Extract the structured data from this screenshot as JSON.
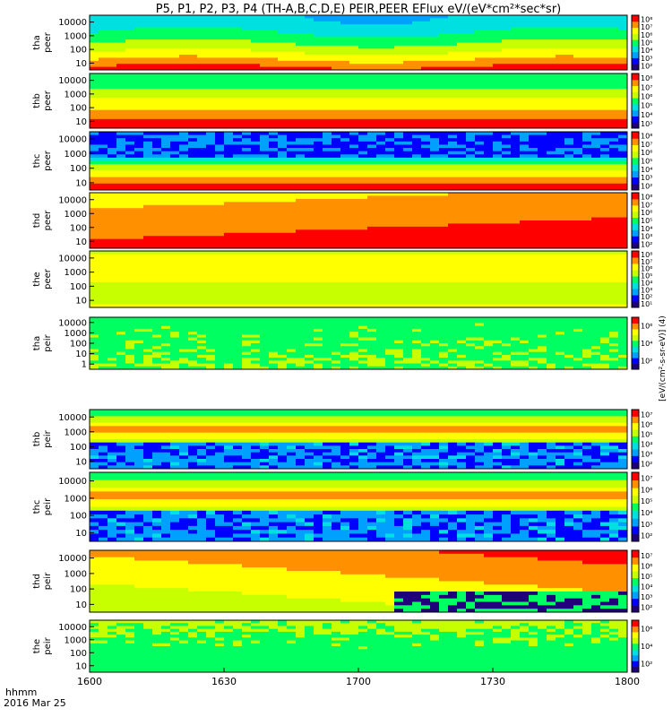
{
  "title": "P5, P1, P2, P3, P4 (TH-A,B,C,D,E) PEIR,PEER EFlux eV/(eV*cm²*sec*sr)",
  "footer": {
    "time_label": "hhmm",
    "date_label": "2016 Mar 25"
  },
  "colors": {
    "spectrogram_scale": [
      "#20007a",
      "#0000ff",
      "#00a0ff",
      "#00e0e0",
      "#00ff60",
      "#c8ff00",
      "#ffff00",
      "#ff9000",
      "#ff0000"
    ],
    "frame": "#000000"
  },
  "chart_data": {
    "type": "heatmap",
    "x": {
      "ticks": [
        "1600",
        "1630",
        "1700",
        "1730",
        "1800"
      ],
      "range": [
        "16:00",
        "18:00"
      ]
    },
    "colorbar_label": "[eV/(cm²-s-sr-eV)] (4)",
    "panels": [
      {
        "id": "tha-peer",
        "label1": "tha",
        "label2": "peer",
        "yticks": [
          "10",
          "100",
          "1000",
          "10000"
        ],
        "cbar_ticks": [
          "10²",
          "10³",
          "10⁴",
          "10⁵",
          "10⁶",
          "10⁷",
          "10⁸"
        ],
        "profile": "peer_low"
      },
      {
        "id": "thb-peer",
        "label1": "thb",
        "label2": "peer",
        "yticks": [
          "10",
          "100",
          "1000",
          "10000"
        ],
        "cbar_ticks": [
          "10³",
          "10⁴",
          "10⁵",
          "10⁶",
          "10⁷",
          "10⁸"
        ],
        "profile": "peer_mid"
      },
      {
        "id": "thc-peer",
        "label1": "thc",
        "label2": "peer",
        "yticks": [
          "10",
          "100",
          "1000",
          "10000"
        ],
        "cbar_ticks": [
          "10²",
          "10³",
          "10⁴",
          "10⁵",
          "10⁶",
          "10⁷",
          "10⁸"
        ],
        "profile": "peer_noisy"
      },
      {
        "id": "thd-peer",
        "label1": "thd",
        "label2": "peer",
        "yticks": [
          "10",
          "100",
          "1000",
          "10000"
        ],
        "cbar_ticks": [
          "10²",
          "10³",
          "10⁴",
          "10⁵",
          "10⁶",
          "10⁷",
          "10⁸"
        ],
        "profile": "peer_hot"
      },
      {
        "id": "the-peer",
        "label1": "the",
        "label2": "peer",
        "yticks": [
          "10",
          "100",
          "1000",
          "10000"
        ],
        "cbar_ticks": [
          "10¹",
          "10²",
          "10³",
          "10⁴",
          "10⁵",
          "10⁶",
          "10⁷",
          "10⁸"
        ],
        "profile": "peer_warm"
      },
      {
        "id": "tha-peir",
        "label1": "tha",
        "label2": "peir",
        "yticks": [
          "1",
          "10",
          "100",
          "1000",
          "10000"
        ],
        "cbar_ticks": [
          "10²",
          "10⁴",
          "10⁶"
        ],
        "profile": "peir_flat"
      },
      {
        "id": "thb-peir",
        "label1": "thb",
        "label2": "peir",
        "yticks": [
          "10",
          "100",
          "1000",
          "10000"
        ],
        "cbar_ticks": [
          "10²",
          "10³",
          "10⁴",
          "10⁵",
          "10⁶",
          "10⁷"
        ],
        "profile": "peir_band"
      },
      {
        "id": "thc-peir",
        "label1": "thc",
        "label2": "peir",
        "yticks": [
          "10",
          "100",
          "1000",
          "10000"
        ],
        "cbar_ticks": [
          "10²",
          "10³",
          "10⁴",
          "10⁵",
          "10⁶",
          "10⁷"
        ],
        "profile": "peir_band"
      },
      {
        "id": "thd-peir",
        "label1": "thd",
        "label2": "peir",
        "yticks": [
          "10",
          "100",
          "1000",
          "10000"
        ],
        "cbar_ticks": [
          "10²",
          "10³",
          "10⁴",
          "10⁵",
          "10⁶",
          "10⁷"
        ],
        "profile": "peir_hot"
      },
      {
        "id": "the-peir",
        "label1": "the",
        "label2": "peir",
        "yticks": [
          "10",
          "100",
          "1000",
          "10000"
        ],
        "cbar_ticks": [
          "10²",
          "10⁴",
          "10⁶"
        ],
        "profile": "peir_flat2"
      }
    ]
  }
}
